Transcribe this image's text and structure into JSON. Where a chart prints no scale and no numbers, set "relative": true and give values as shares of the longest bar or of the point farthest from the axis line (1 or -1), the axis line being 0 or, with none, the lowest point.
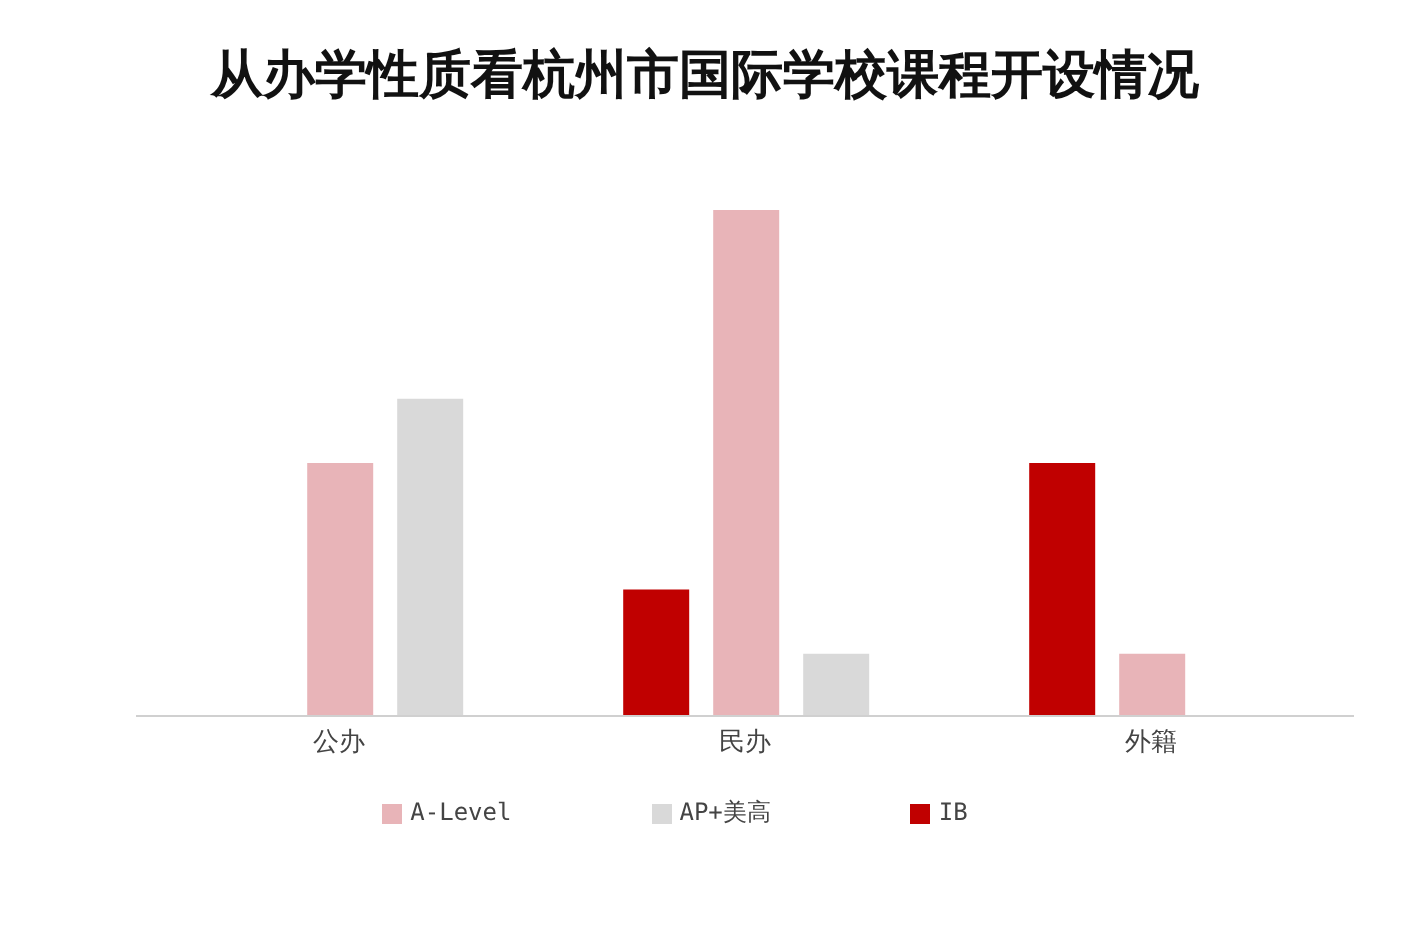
{
  "chart_data": {
    "type": "bar",
    "title": "从办学性质看杭州市国际学校课程开设情况",
    "categories": [
      "公办",
      "民办",
      "外籍"
    ],
    "relative": true,
    "legend": "bottom",
    "series": [
      {
        "name": "IB",
        "color": "#c00000",
        "values": [
          0,
          0.25,
          0.5
        ]
      },
      {
        "name": "A-Level",
        "color": "#e8b4b8",
        "values": [
          0.5,
          1,
          0.123
        ]
      },
      {
        "name": "AP+美高",
        "color": "#d9d9d9",
        "values": [
          0.627,
          0.123,
          0
        ]
      }
    ]
  }
}
